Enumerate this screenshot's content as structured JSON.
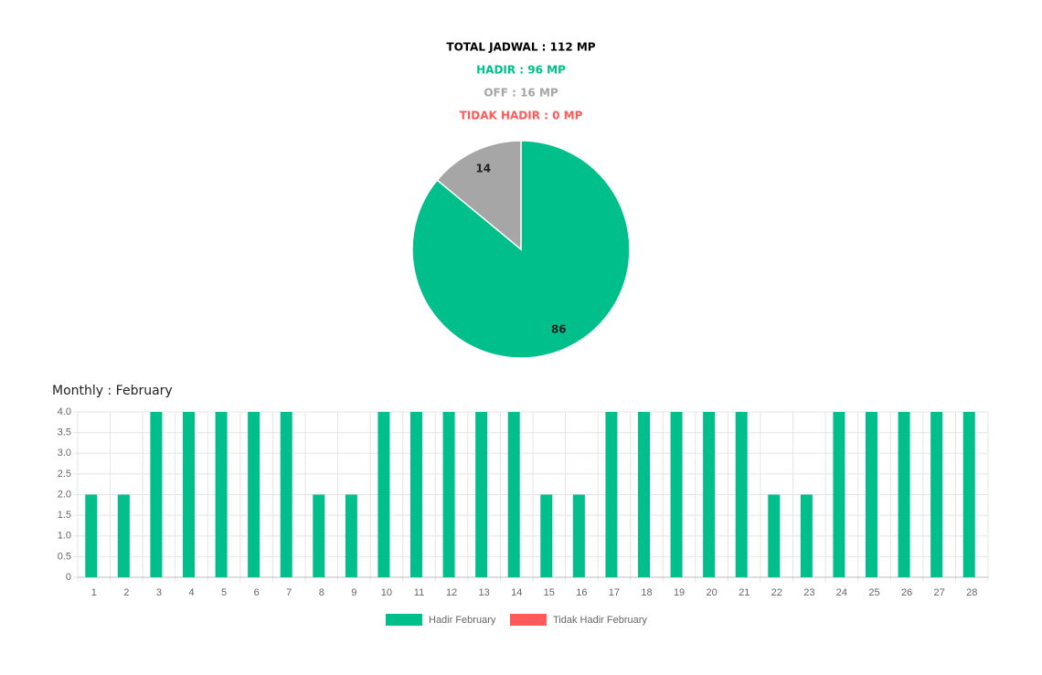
{
  "chart_data": [
    {
      "type": "pie",
      "summary": [
        {
          "text": "TOTAL JADWAL : 112 MP",
          "color": "#000000"
        },
        {
          "text": "HADIR : 96 MP",
          "color": "#00bf8a"
        },
        {
          "text": "OFF : 16 MP",
          "color": "#a6a6a6"
        },
        {
          "text": "TIDAK HADIR : 0 MP",
          "color": "#ff5a5a"
        }
      ],
      "values": [
        86,
        14
      ],
      "colors": [
        "#00bf8a",
        "#a6a6a6"
      ]
    },
    {
      "type": "bar",
      "title": "Monthly : February",
      "categories": [
        "1",
        "2",
        "3",
        "4",
        "5",
        "6",
        "7",
        "8",
        "9",
        "10",
        "11",
        "12",
        "13",
        "14",
        "15",
        "16",
        "17",
        "18",
        "19",
        "20",
        "21",
        "22",
        "23",
        "24",
        "25",
        "26",
        "27",
        "28"
      ],
      "series": [
        {
          "name": "Hadir February",
          "color": "#00bf8a",
          "values": [
            2,
            2,
            4,
            4,
            4,
            4,
            4,
            2,
            2,
            4,
            4,
            4,
            4,
            4,
            2,
            2,
            4,
            4,
            4,
            4,
            4,
            2,
            2,
            4,
            4,
            4,
            4,
            4
          ]
        },
        {
          "name": "Tidak Hadir February",
          "color": "#ff5a5a",
          "values": [
            0,
            0,
            0,
            0,
            0,
            0,
            0,
            0,
            0,
            0,
            0,
            0,
            0,
            0,
            0,
            0,
            0,
            0,
            0,
            0,
            0,
            0,
            0,
            0,
            0,
            0,
            0,
            0
          ]
        }
      ],
      "ylim": [
        0,
        4
      ],
      "yticks": [
        0,
        0.5,
        {
          "value": 1,
          "label": "1.0"
        },
        1.5,
        {
          "value": 2,
          "label": "2.0"
        },
        2.5,
        {
          "value": 3,
          "label": "3.0"
        },
        3.5,
        {
          "value": 4,
          "label": "4.0"
        }
      ],
      "grid": true,
      "legend": "bottom"
    }
  ]
}
